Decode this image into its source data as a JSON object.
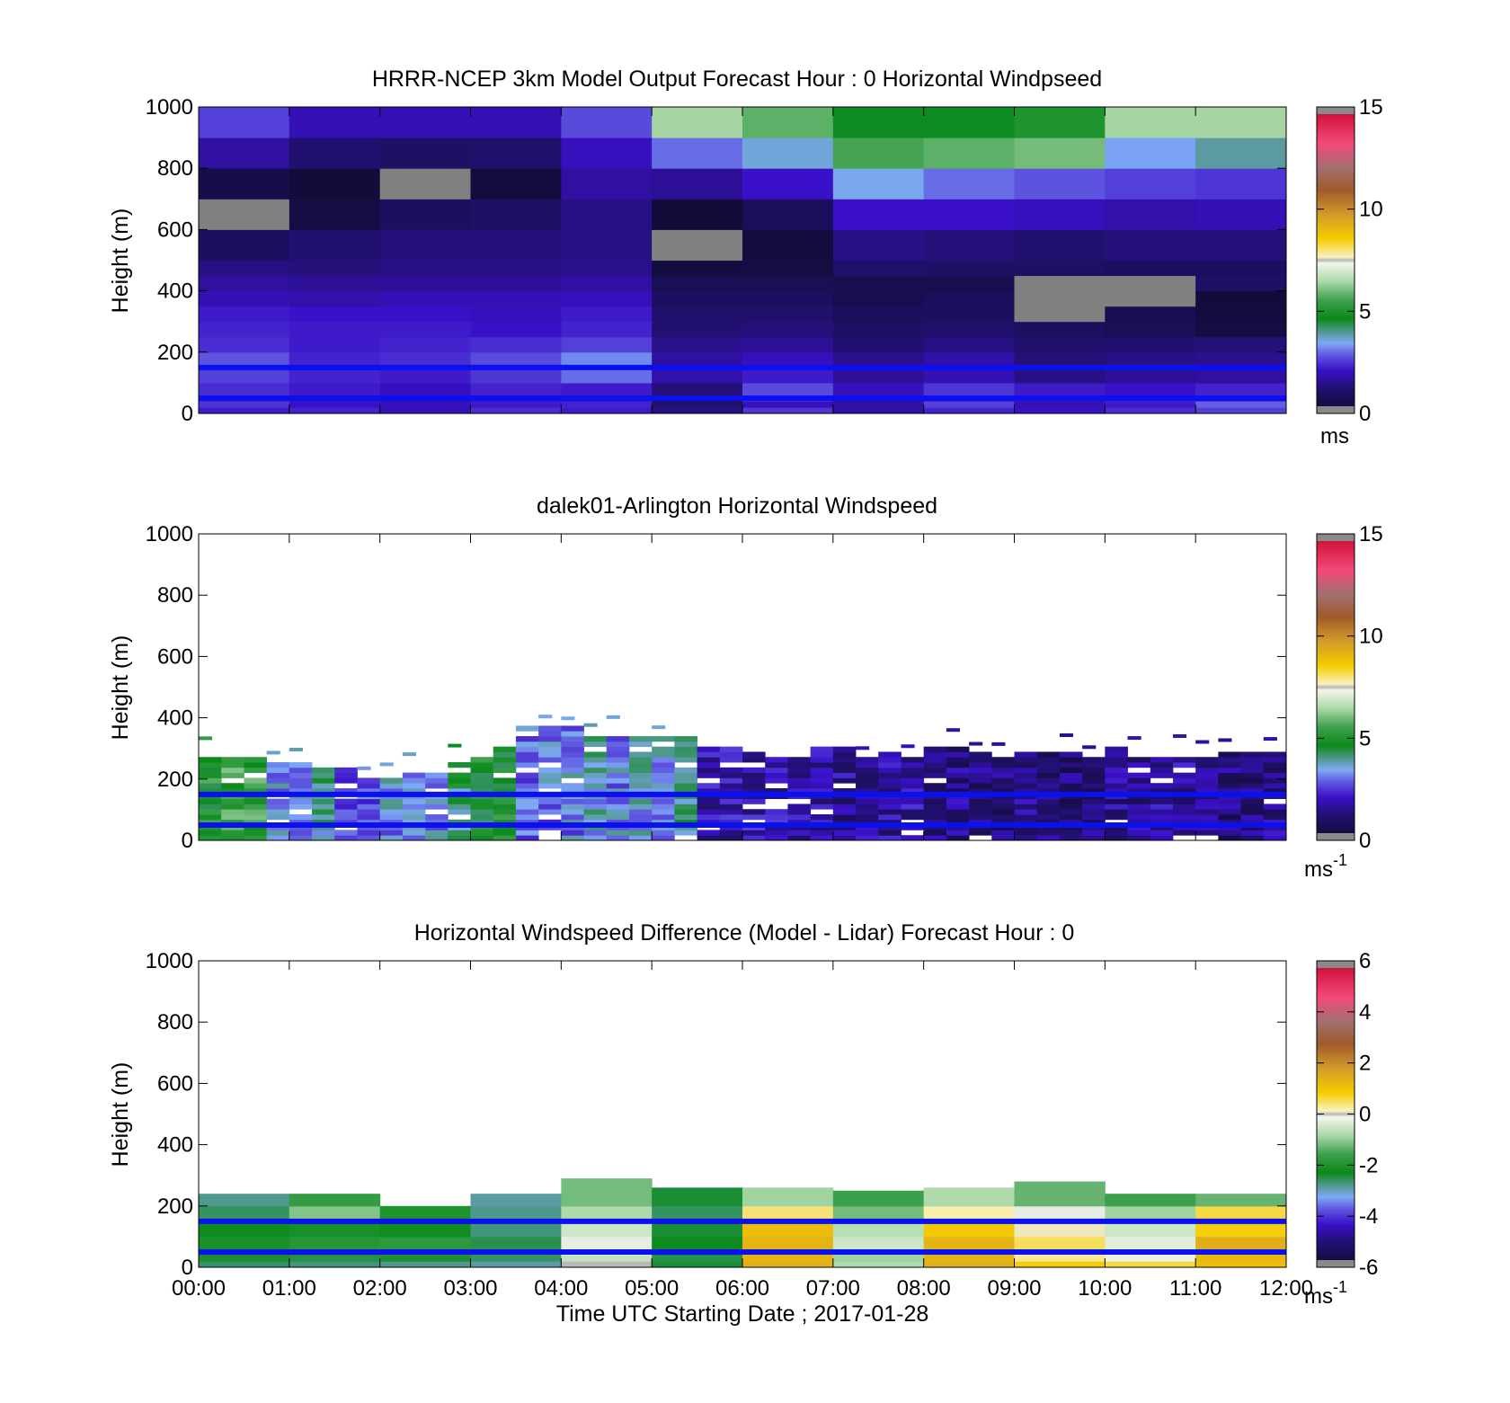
{
  "figure": {
    "xticks": [
      "00:00",
      "01:00",
      "02:00",
      "03:00",
      "04:00",
      "05:00",
      "06:00",
      "07:00",
      "08:00",
      "09:00",
      "10:00",
      "11:00",
      "12:00"
    ],
    "xlabel": "Time UTC  Starting Date ; 2017-01-28",
    "ylabel": "Height (m)",
    "yticks": [
      "0",
      "200",
      "400",
      "600",
      "800",
      "1000"
    ],
    "ref_lines": {
      "heights_m": [
        50,
        150
      ],
      "color": "#0a10ee"
    }
  },
  "chart_data": [
    {
      "type": "heatmap",
      "title": "HRRR-NCEP 3km Model Output   Forecast Hour : 0 Horizontal Windpseed",
      "ylabel": "Height (m)",
      "xlim_hours": [
        0,
        12
      ],
      "ylim": [
        0,
        1000
      ],
      "colorbar": {
        "ticks": [
          "0",
          "5",
          "10",
          "15"
        ],
        "range": [
          0,
          15
        ],
        "unit": "ms"
      },
      "column_hours": [
        0,
        1,
        2,
        3,
        4,
        5,
        6,
        7,
        8,
        9,
        10,
        11
      ],
      "level_heights_m": [
        0,
        20,
        40,
        60,
        100,
        150,
        200,
        250,
        300,
        350,
        400,
        450,
        500,
        600,
        700,
        800,
        900,
        1000
      ],
      "nodata_value": null,
      "values": [
        [
          2.2,
          2.3,
          2.0,
          2.4,
          2.2,
          1.4,
          2.5,
          1.8,
          2.3,
          2.1,
          2.4,
          2.6
        ],
        [
          2.5,
          2.1,
          2.0,
          2.2,
          2.3,
          1.2,
          2.0,
          1.7,
          2.6,
          1.9,
          2.2,
          2.9
        ],
        [
          2.3,
          2.0,
          1.8,
          2.1,
          2.1,
          1.0,
          2.4,
          1.6,
          2.2,
          2.0,
          2.3,
          2.4
        ],
        [
          2.4,
          2.2,
          2.0,
          2.3,
          2.2,
          1.3,
          2.7,
          2.0,
          2.5,
          2.2,
          2.1,
          2.3
        ],
        [
          2.6,
          2.3,
          2.2,
          2.5,
          3.0,
          1.8,
          2.2,
          1.6,
          1.9,
          1.4,
          1.6,
          1.7
        ],
        [
          2.8,
          2.3,
          2.4,
          2.7,
          3.2,
          1.7,
          2.0,
          1.5,
          1.8,
          1.3,
          1.4,
          1.5
        ],
        [
          2.4,
          2.2,
          2.3,
          2.4,
          2.6,
          1.5,
          1.6,
          1.2,
          1.4,
          1.1,
          1.2,
          1.3
        ],
        [
          2.3,
          2.2,
          2.2,
          2.1,
          2.3,
          1.2,
          1.3,
          1.0,
          1.1,
          0.9,
          0.7,
          0.4
        ],
        [
          2.2,
          2.1,
          2.1,
          2.0,
          2.2,
          1.1,
          1.1,
          0.8,
          0.9,
          null,
          0.6,
          0.3
        ],
        [
          1.9,
          1.8,
          1.9,
          1.9,
          2.0,
          0.9,
          0.9,
          0.6,
          0.8,
          null,
          null,
          0.2
        ],
        [
          1.7,
          1.6,
          1.6,
          1.6,
          1.7,
          0.7,
          0.7,
          0.6,
          0.6,
          null,
          null,
          1.0
        ],
        [
          1.4,
          1.3,
          1.4,
          1.4,
          1.5,
          0.3,
          0.4,
          1.1,
          1.0,
          1.0,
          0.9,
          0.9
        ],
        [
          0.9,
          1.2,
          1.3,
          1.3,
          1.4,
          null,
          0.3,
          1.4,
          1.3,
          1.2,
          1.3,
          1.3
        ],
        [
          null,
          0.4,
          0.9,
          1.0,
          1.4,
          0.2,
          0.8,
          2.1,
          2.1,
          2.0,
          1.8,
          1.9
        ],
        [
          0.5,
          0.2,
          null,
          0.3,
          1.7,
          1.6,
          2.1,
          3.5,
          3.0,
          2.8,
          2.6,
          2.5
        ],
        [
          1.7,
          1.2,
          1.0,
          1.1,
          2.0,
          3.0,
          3.6,
          5.6,
          5.8,
          6.0,
          3.4,
          3.9
        ],
        [
          2.6,
          1.9,
          1.9,
          1.9,
          2.7,
          6.4,
          5.8,
          4.6,
          4.6,
          5.0,
          6.4,
          6.4
        ]
      ]
    },
    {
      "type": "heatmap",
      "title": "dalek01-Arlington  Horizontal Windspeed",
      "ylabel": "Height (m)",
      "xlim_hours": [
        0,
        12
      ],
      "ylim": [
        0,
        1000
      ],
      "colorbar": {
        "ticks": [
          "0",
          "5",
          "10",
          "15"
        ],
        "range": [
          0,
          15
        ],
        "unit": "ms",
        "unit_exp": "-1"
      },
      "profile_hours": [
        0.0,
        0.25,
        0.5,
        0.75,
        1.0,
        1.25,
        1.5,
        1.75,
        2.0,
        2.25,
        2.5,
        2.75,
        3.0,
        3.25,
        3.5,
        3.75,
        4.0,
        4.25,
        4.5,
        4.75,
        5.0,
        5.25,
        5.5,
        5.75,
        6.0,
        6.25,
        6.5,
        6.75,
        7.0,
        7.25,
        7.5,
        7.75,
        8.0,
        8.25,
        8.5,
        8.75,
        9.0,
        9.25,
        9.5,
        9.75,
        10.0,
        10.25,
        10.5,
        10.75,
        11.0,
        11.25,
        11.5,
        11.75
      ],
      "profile_top_m": [
        260,
        260,
        260,
        240,
        240,
        230,
        230,
        200,
        200,
        210,
        220,
        250,
        270,
        290,
        360,
        360,
        360,
        340,
        330,
        330,
        330,
        330,
        300,
        290,
        280,
        260,
        280,
        290,
        290,
        260,
        280,
        270,
        290,
        290,
        280,
        260,
        280,
        280,
        280,
        270,
        290,
        270,
        260,
        270,
        270,
        280,
        280,
        280
      ],
      "profile_mean_ms": [
        5.0,
        5.4,
        5.3,
        3.4,
        3.5,
        3.8,
        2.7,
        3.0,
        3.3,
        3.4,
        3.3,
        4.3,
        4.9,
        5.0,
        3.0,
        3.1,
        3.2,
        3.6,
        3.3,
        3.5,
        3.3,
        4.3,
        1.8,
        1.9,
        1.9,
        1.8,
        1.8,
        1.7,
        1.6,
        1.6,
        1.7,
        1.7,
        1.5,
        1.4,
        1.3,
        1.3,
        1.4,
        1.2,
        1.2,
        1.3,
        1.5,
        1.6,
        1.7,
        1.6,
        1.4,
        1.3,
        1.3,
        1.5
      ],
      "gate_spacing_m": 17
    },
    {
      "type": "heatmap",
      "title": "Horizontal Windspeed Difference (Model - Lidar) Forecast Hour : 0",
      "ylabel": "Height (m)",
      "xlim_hours": [
        0,
        12
      ],
      "ylim": [
        0,
        1000
      ],
      "colorbar": {
        "ticks": [
          "-6",
          "-4",
          "-2",
          "0",
          "2",
          "4",
          "6"
        ],
        "range": [
          -6,
          6
        ],
        "unit": "ms",
        "unit_exp": "-1"
      },
      "column_hours": [
        0,
        1,
        2,
        3,
        4,
        5,
        6,
        7,
        8,
        9,
        10,
        11
      ],
      "column_top_m": [
        240,
        240,
        200,
        240,
        290,
        260,
        260,
        250,
        260,
        280,
        240,
        240
      ],
      "level_heights_m": [
        0,
        20,
        40,
        60,
        100,
        150,
        200,
        250
      ],
      "values": [
        [
          -2.6,
          -2.7,
          -2.8,
          -2.9,
          0.0,
          -2.4,
          1.4,
          -0.8,
          1.4,
          0.8,
          0.6,
          1.1
        ],
        [
          -2.4,
          -2.5,
          -2.4,
          -2.6,
          -0.6,
          -2.5,
          1.3,
          -0.9,
          1.3,
          0.3,
          -0.2,
          1.2
        ],
        [
          -2.2,
          -2.1,
          -2.0,
          -2.6,
          -0.3,
          -2.2,
          1.2,
          -0.9,
          1.3,
          0.2,
          0.2,
          1.0
        ],
        [
          -2.1,
          -1.9,
          -1.8,
          -2.5,
          -0.1,
          -2.3,
          1.3,
          -0.5,
          1.3,
          0.5,
          -0.3,
          1.4
        ],
        [
          -2.3,
          -2.1,
          -2.2,
          -2.7,
          -0.5,
          -2.4,
          1.1,
          -0.7,
          0.9,
          0.1,
          -0.5,
          0.8
        ],
        [
          -2.6,
          -1.1,
          -2.0,
          -2.8,
          -0.8,
          -2.6,
          0.4,
          -1.2,
          0.2,
          -0.1,
          -0.9,
          0.6
        ],
        [
          -2.8,
          -1.7,
          -1.4,
          -2.9,
          -1.2,
          -2.4,
          -0.9,
          -1.6,
          -0.8,
          -1.3,
          -1.6,
          -1.3
        ]
      ]
    }
  ]
}
